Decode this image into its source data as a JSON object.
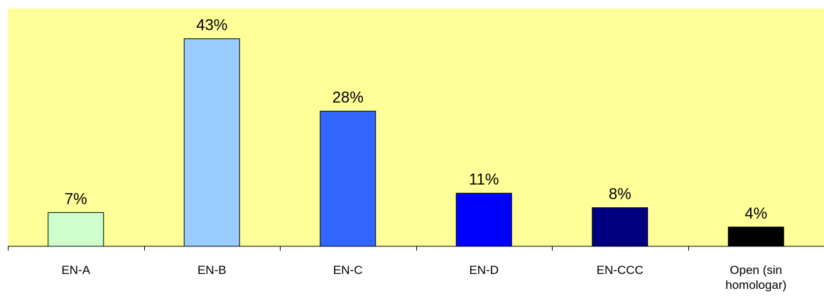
{
  "chart_data": {
    "type": "bar",
    "categories": [
      "EN-A",
      "EN-B",
      "EN-C",
      "EN-D",
      "EN-CCC",
      "Open (sin homologar)"
    ],
    "category_lines": [
      [
        "EN-A"
      ],
      [
        "EN-B"
      ],
      [
        "EN-C"
      ],
      [
        "EN-D"
      ],
      [
        "EN-CCC"
      ],
      [
        "Open (sin",
        "homologar)"
      ]
    ],
    "values": [
      7,
      43,
      28,
      11,
      8,
      4
    ],
    "value_labels": [
      "7%",
      "43%",
      "28%",
      "11%",
      "8%",
      "4%"
    ],
    "unit": "%",
    "ylim": [
      0,
      50
    ],
    "bar_colors": [
      "#ccffcc",
      "#99ccff",
      "#3366ff",
      "#0000ff",
      "#000080",
      "#000000"
    ],
    "plot_background": "#ffff99",
    "grid": false,
    "legend": "none",
    "title": "",
    "xlabel": "",
    "ylabel": ""
  }
}
